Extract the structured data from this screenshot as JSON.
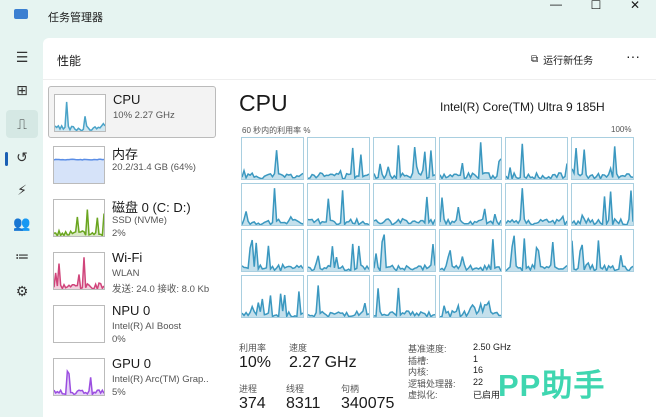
{
  "window": {
    "title": "任务管理器",
    "minimize": "—",
    "maximize": "☐",
    "close": "✕"
  },
  "header": {
    "title": "性能",
    "run_new_task": "运行新任务",
    "more": "···"
  },
  "sidebar": [
    {
      "name": "CPU",
      "line1": "10%  2.27 GHz",
      "line2": "",
      "color": "#4aa3c8"
    },
    {
      "name": "内存",
      "line1": "20.2/31.4 GB (64%)",
      "line2": "",
      "color": "#5b8ee6"
    },
    {
      "name": "磁盘 0 (C: D:)",
      "line1": "SSD (NVMe)",
      "line2": "2%",
      "color": "#6aa520"
    },
    {
      "name": "Wi-Fi",
      "line1": "WLAN",
      "line2": "发送: 24.0  接收: 8.0 Kb",
      "color": "#d0457b"
    },
    {
      "name": "NPU 0",
      "line1": "Intel(R) AI Boost",
      "line2": "0%",
      "color": "#4aa3c8"
    },
    {
      "name": "GPU 0",
      "line1": "Intel(R) Arc(TM) Grap..",
      "line2": "5%",
      "color": "#9b4ee0"
    }
  ],
  "cpu": {
    "title": "CPU",
    "model": "Intel(R) Core(TM) Ultra 9 185H",
    "graph_caption": "60 秒内的利用率 %",
    "graph_max": "100%",
    "stats": {
      "util_label": "利用率",
      "util": "10%",
      "speed_label": "速度",
      "speed": "2.27 GHz",
      "proc_label": "进程",
      "proc": "374",
      "threads_label": "线程",
      "threads": "8311",
      "handles_label": "句柄",
      "handles": "340075"
    },
    "specs": [
      {
        "k": "基准速度:",
        "v": "2.50 GHz"
      },
      {
        "k": "插槽:",
        "v": "1"
      },
      {
        "k": "内核:",
        "v": "16"
      },
      {
        "k": "逻辑处理器:",
        "v": "22"
      },
      {
        "k": "虚拟化:",
        "v": "已启用"
      }
    ]
  },
  "watermark": "PP助手"
}
